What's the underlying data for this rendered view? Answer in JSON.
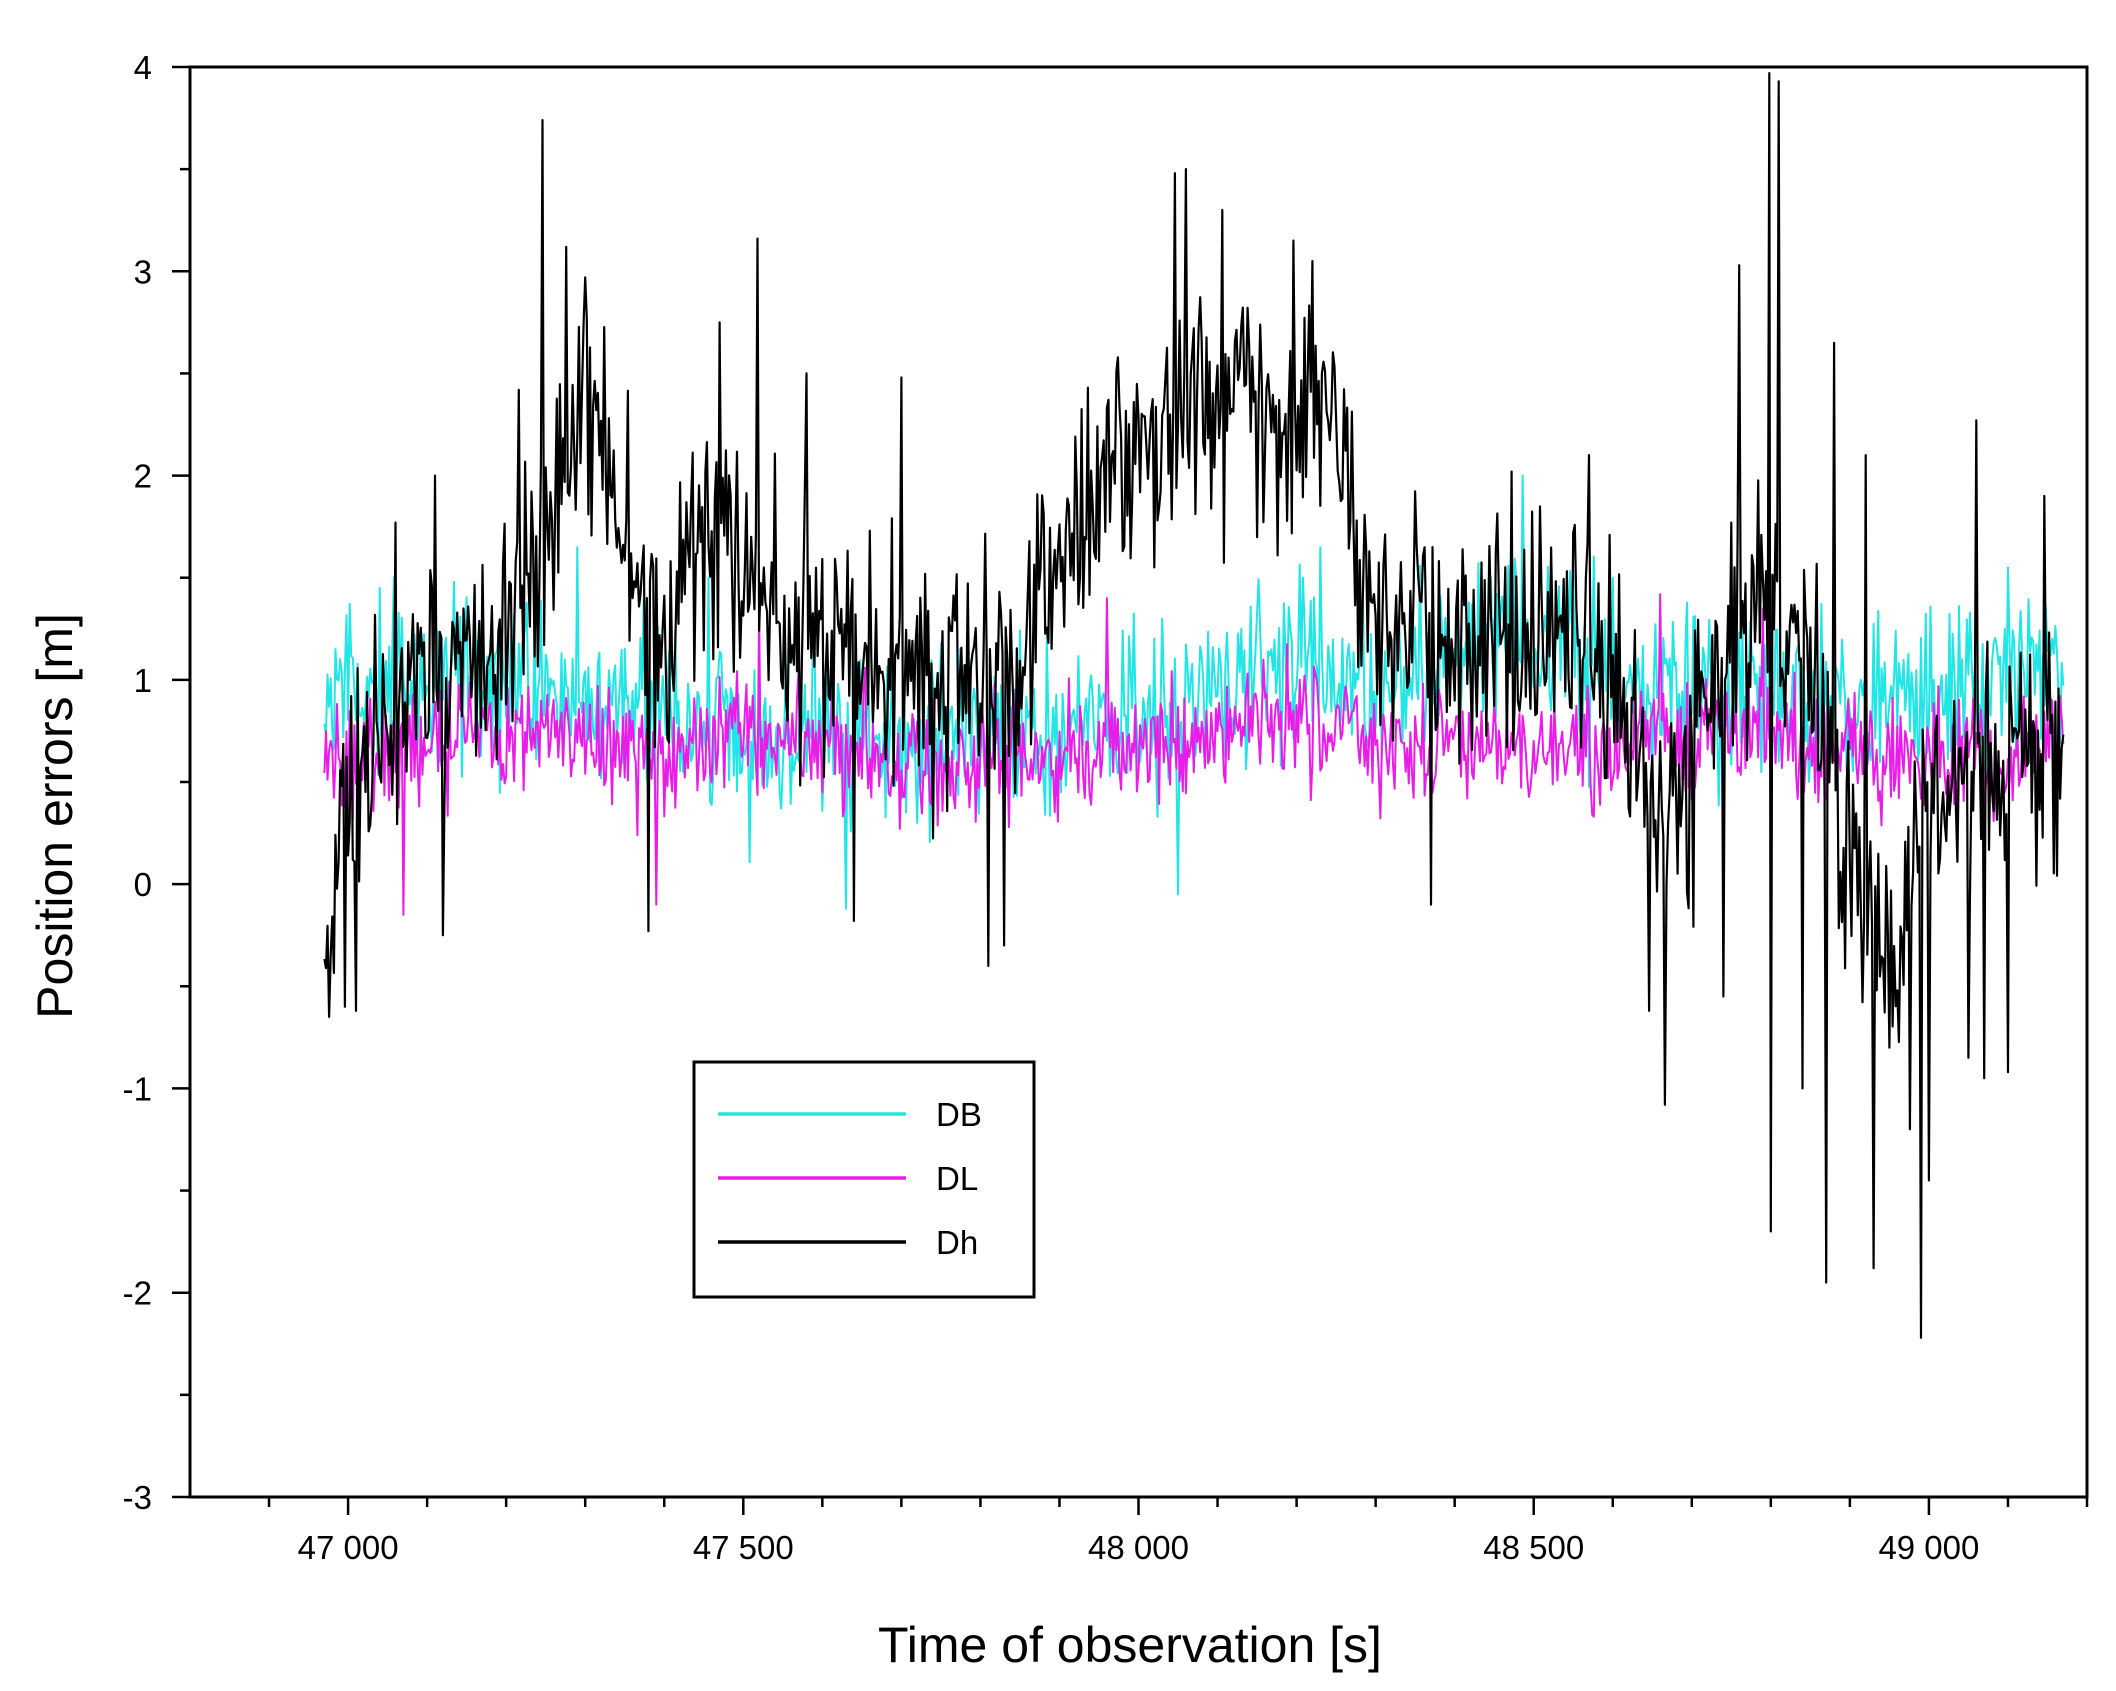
{
  "chart_data": {
    "type": "line",
    "title": "",
    "xlabel": "Time of observation [s]",
    "ylabel": "Position errors [m]",
    "xlim": [
      46800,
      49200
    ],
    "ylim": [
      -3,
      4
    ],
    "x_ticks": [
      {
        "value": 47000,
        "label": "47 000"
      },
      {
        "value": 47500,
        "label": "47 500"
      },
      {
        "value": 48000,
        "label": "48 000"
      },
      {
        "value": 48500,
        "label": "48 500"
      },
      {
        "value": 49000,
        "label": "49 000"
      }
    ],
    "y_ticks": [
      {
        "value": -3,
        "label": "-3"
      },
      {
        "value": -2,
        "label": "-2"
      },
      {
        "value": -1,
        "label": "-1"
      },
      {
        "value": 0,
        "label": "0"
      },
      {
        "value": 1,
        "label": "1"
      },
      {
        "value": 2,
        "label": "2"
      },
      {
        "value": 3,
        "label": "3"
      },
      {
        "value": 4,
        "label": "4"
      }
    ],
    "legend_position": "lower-left-center",
    "series": [
      {
        "name": "DB",
        "color": "#22e5e5",
        "x_start": 46970,
        "x_end": 49170,
        "step": 2,
        "trend_x": [
          46970,
          47050,
          47200,
          47350,
          47500,
          47650,
          47800,
          47950,
          48100,
          48200,
          48250,
          48350,
          48450,
          48550,
          48650,
          48800,
          48950,
          49050,
          49170
        ],
        "trend_y": [
          0.9,
          1.0,
          1.0,
          0.9,
          0.7,
          0.75,
          0.7,
          0.75,
          0.9,
          1.1,
          1.0,
          1.0,
          1.2,
          1.1,
          0.9,
          0.9,
          0.9,
          1.0,
          1.1
        ],
        "noise_amplitude": 0.32,
        "spikes": [
          {
            "x": 47040,
            "y": 1.45
          },
          {
            "x": 47290,
            "y": 1.65
          },
          {
            "x": 47455,
            "y": 1.5
          },
          {
            "x": 47630,
            "y": -0.12
          },
          {
            "x": 48050,
            "y": -0.05
          },
          {
            "x": 48230,
            "y": 1.65
          },
          {
            "x": 48485,
            "y": 2.0
          },
          {
            "x": 49100,
            "y": 1.55
          }
        ]
      },
      {
        "name": "DL",
        "color": "#e81ee8",
        "x_start": 46970,
        "x_end": 49170,
        "step": 2,
        "trend_x": [
          46970,
          47100,
          47250,
          47400,
          47550,
          47700,
          47850,
          48000,
          48150,
          48300,
          48450,
          48600,
          48800,
          49000,
          49170
        ],
        "trend_y": [
          0.6,
          0.7,
          0.75,
          0.65,
          0.7,
          0.6,
          0.6,
          0.7,
          0.8,
          0.7,
          0.65,
          0.7,
          0.75,
          0.6,
          0.7
        ],
        "noise_amplitude": 0.22,
        "spikes": [
          {
            "x": 47070,
            "y": -0.15
          },
          {
            "x": 47390,
            "y": -0.1
          },
          {
            "x": 47520,
            "y": 1.35
          },
          {
            "x": 47960,
            "y": 1.4
          },
          {
            "x": 48660,
            "y": 1.42
          },
          {
            "x": 48790,
            "y": 1.35
          }
        ]
      },
      {
        "name": "Dh",
        "color": "#000000",
        "x_start": 46970,
        "x_end": 49170,
        "step": 2,
        "trend_x": [
          46970,
          46990,
          47050,
          47150,
          47230,
          47300,
          47360,
          47400,
          47450,
          47550,
          47650,
          47750,
          47850,
          47950,
          48050,
          48150,
          48250,
          48300,
          48400,
          48500,
          48600,
          48650,
          48700,
          48750,
          48800,
          48850,
          48900,
          48950,
          49000,
          49050,
          49100,
          49170
        ],
        "trend_y": [
          -0.3,
          0.2,
          0.8,
          1.0,
          1.5,
          2.2,
          1.6,
          1.0,
          1.8,
          1.3,
          1.2,
          1.0,
          1.1,
          2.0,
          2.3,
          2.4,
          2.2,
          1.3,
          1.1,
          1.3,
          1.0,
          0.4,
          0.6,
          1.2,
          1.5,
          0.9,
          0.1,
          -0.3,
          0.3,
          0.5,
          0.6,
          0.6
        ],
        "noise_amplitude": 0.45,
        "spikes": [
          {
            "x": 46975,
            "y": -0.65
          },
          {
            "x": 46995,
            "y": -0.6
          },
          {
            "x": 47010,
            "y": -0.62
          },
          {
            "x": 47060,
            "y": 1.77
          },
          {
            "x": 47110,
            "y": 2.0
          },
          {
            "x": 47120,
            "y": -0.25
          },
          {
            "x": 47215,
            "y": 2.42
          },
          {
            "x": 47245,
            "y": 3.74
          },
          {
            "x": 47275,
            "y": 3.12
          },
          {
            "x": 47300,
            "y": 2.97
          },
          {
            "x": 47380,
            "y": -0.23
          },
          {
            "x": 47470,
            "y": 2.75
          },
          {
            "x": 47518,
            "y": 3.16
          },
          {
            "x": 47580,
            "y": 2.5
          },
          {
            "x": 47640,
            "y": -0.18
          },
          {
            "x": 47700,
            "y": 2.48
          },
          {
            "x": 47810,
            "y": -0.4
          },
          {
            "x": 47830,
            "y": -0.3
          },
          {
            "x": 48045,
            "y": 3.48
          },
          {
            "x": 48060,
            "y": 3.5
          },
          {
            "x": 48105,
            "y": 3.3
          },
          {
            "x": 48195,
            "y": 3.15
          },
          {
            "x": 48220,
            "y": 3.05
          },
          {
            "x": 48370,
            "y": -0.1
          },
          {
            "x": 48570,
            "y": 2.1
          },
          {
            "x": 48645,
            "y": -0.62
          },
          {
            "x": 48665,
            "y": -1.08
          },
          {
            "x": 48740,
            "y": -0.55
          },
          {
            "x": 48760,
            "y": 3.03
          },
          {
            "x": 48798,
            "y": 3.97
          },
          {
            "x": 48800,
            "y": -1.7
          },
          {
            "x": 48810,
            "y": 3.93
          },
          {
            "x": 48840,
            "y": -1.0
          },
          {
            "x": 48870,
            "y": -1.95
          },
          {
            "x": 48880,
            "y": 2.65
          },
          {
            "x": 48920,
            "y": 2.1
          },
          {
            "x": 48930,
            "y": -1.88
          },
          {
            "x": 48950,
            "y": -0.8
          },
          {
            "x": 48975,
            "y": -1.2
          },
          {
            "x": 48990,
            "y": -2.22
          },
          {
            "x": 49000,
            "y": -1.45
          },
          {
            "x": 49050,
            "y": -0.85
          },
          {
            "x": 49060,
            "y": 2.27
          },
          {
            "x": 49070,
            "y": -0.95
          },
          {
            "x": 49100,
            "y": -0.92
          },
          {
            "x": 49145,
            "y": 1.9
          }
        ]
      }
    ]
  }
}
